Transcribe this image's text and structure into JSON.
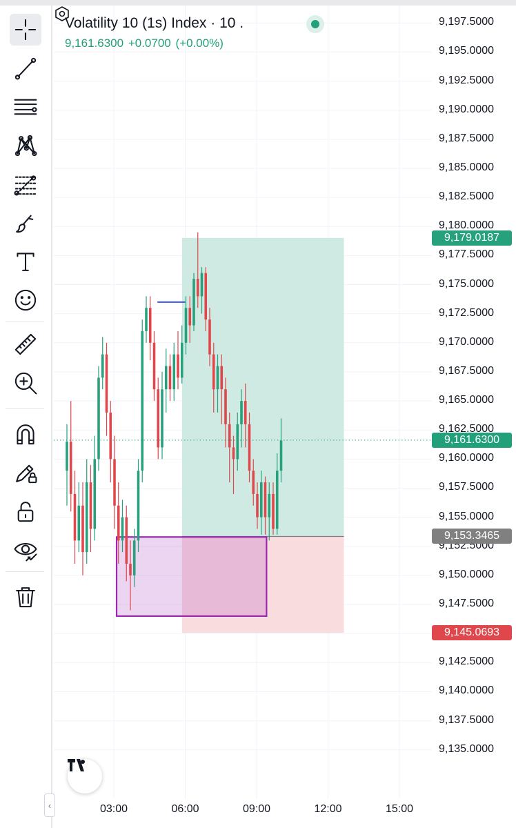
{
  "symbol": {
    "title": "Volatility 10 (1s) Index · 10 .",
    "price": "9,161.6300",
    "change": "+0.0700",
    "change_pct": "(+0.00%)"
  },
  "colors": {
    "up": "#26a17b",
    "down": "#e0474c",
    "profit_zone": "#cfeae2",
    "loss_zone": "#f9dcde",
    "current_price": "#22a07a",
    "entry": "#808080",
    "stop": "#e0474c",
    "box_border": "#9c27b0",
    "line": "#3d5ad4"
  },
  "toolbar": {
    "tools": [
      {
        "name": "crosshair-icon",
        "active": true
      },
      {
        "name": "trend-line-icon"
      },
      {
        "name": "horizontal-lines-icon"
      },
      {
        "name": "pattern-icon"
      },
      {
        "name": "fib-icon"
      },
      {
        "name": "brush-icon"
      },
      {
        "name": "text-icon"
      },
      {
        "name": "emoji-icon"
      },
      {
        "name": "ruler-icon"
      },
      {
        "name": "zoom-in-icon"
      },
      {
        "name": "magnet-icon"
      },
      {
        "name": "lock-drawing-icon"
      },
      {
        "name": "unlock-icon"
      },
      {
        "name": "eye-icon"
      },
      {
        "name": "trash-icon"
      }
    ],
    "collapse_glyph": "‹"
  },
  "price_axis": {
    "ticks": [
      "9,197.5000",
      "9,195.0000",
      "9,192.5000",
      "9,190.0000",
      "9,187.5000",
      "9,185.0000",
      "9,182.5000",
      "9,180.0000",
      "9,177.5000",
      "9,175.0000",
      "9,172.5000",
      "9,170.0000",
      "9,167.5000",
      "9,165.0000",
      "9,162.5000",
      "9,160.0000",
      "9,157.5000",
      "9,155.0000",
      "9,152.5000",
      "9,150.0000",
      "9,147.5000",
      "9,145.0000",
      "9,142.5000",
      "9,140.0000",
      "9,137.5000",
      "9,135.0000"
    ],
    "labels": {
      "target": "9,179.0187",
      "current": "9,161.6300",
      "entry": "9,153.3465",
      "stop": "9,145.0693"
    }
  },
  "time_axis": {
    "ticks": [
      "03:00",
      "06:00",
      "09:00",
      "12:00",
      "15:00"
    ]
  },
  "chart_data": {
    "type": "candlestick",
    "ylim": [
      9133.5,
      9199
    ],
    "grid": true,
    "x": {
      "first_candle_time": "01:00",
      "candle_interval_minutes": 10
    },
    "candles": [
      [
        9159,
        9161.5,
        9156,
        9163
      ],
      [
        9161.5,
        9157,
        9155.5,
        9165
      ],
      [
        9157,
        9153,
        9151,
        9159
      ],
      [
        9153,
        9156,
        9152,
        9158
      ],
      [
        9156,
        9152,
        9150,
        9158
      ],
      [
        9152,
        9158,
        9151,
        9160
      ],
      [
        9158,
        9154,
        9152,
        9159.5
      ],
      [
        9154,
        9160,
        9153,
        9162
      ],
      [
        9160,
        9167,
        9159,
        9168
      ],
      [
        9167,
        9169,
        9166,
        9170.5
      ],
      [
        9169,
        9164,
        9162,
        9170
      ],
      [
        9164,
        9160,
        9158,
        9165
      ],
      [
        9160,
        9156,
        9154,
        9162
      ],
      [
        9156,
        9153,
        9151,
        9158
      ],
      [
        9153,
        9155,
        9152,
        9156.5
      ],
      [
        9155,
        9151,
        9149.5,
        9156
      ],
      [
        9151,
        9150,
        9147,
        9153
      ],
      [
        9150,
        9153,
        9149,
        9154
      ],
      [
        9153,
        9159,
        9152,
        9160
      ],
      [
        9159,
        9171,
        9158,
        9172
      ],
      [
        9171,
        9173,
        9170,
        9174
      ],
      [
        9173,
        9170,
        9168.5,
        9174
      ],
      [
        9170,
        9166,
        9165,
        9171
      ],
      [
        9166,
        9161,
        9160,
        9167
      ],
      [
        9161,
        9166,
        9160,
        9167.5
      ],
      [
        9166,
        9168,
        9164,
        9169.5
      ],
      [
        9168,
        9166,
        9165,
        9169
      ],
      [
        9166,
        9169,
        9165,
        9170
      ],
      [
        9169,
        9167,
        9166,
        9171
      ],
      [
        9167,
        9170,
        9166.5,
        9171.5
      ],
      [
        9170,
        9173,
        9169,
        9174
      ],
      [
        9173,
        9171.5,
        9170,
        9174
      ],
      [
        9171.5,
        9175.5,
        9171,
        9176
      ],
      [
        9175.5,
        9174,
        9173,
        9179.5
      ],
      [
        9174,
        9176,
        9172.5,
        9176.5
      ],
      [
        9176,
        9172,
        9171,
        9176.5
      ],
      [
        9172,
        9169,
        9168,
        9173
      ],
      [
        9169,
        9166,
        9164,
        9170
      ],
      [
        9166,
        9168,
        9164,
        9169
      ],
      [
        9168,
        9166,
        9163,
        9169
      ],
      [
        9166,
        9163,
        9161,
        9167
      ],
      [
        9163,
        9161,
        9158,
        9164
      ],
      [
        9161,
        9160,
        9157,
        9162
      ],
      [
        9160,
        9163,
        9159,
        9164
      ],
      [
        9163,
        9165,
        9161,
        9166
      ],
      [
        9165,
        9163,
        9161,
        9166.5
      ],
      [
        9163,
        9159,
        9158,
        9164
      ],
      [
        9159,
        9157,
        9156,
        9160
      ],
      [
        9157,
        9155,
        9154,
        9158
      ],
      [
        9155,
        9158,
        9153.5,
        9159
      ],
      [
        9158,
        9155,
        9153.5,
        9158.5
      ],
      [
        9155,
        9157,
        9153,
        9158
      ],
      [
        9157,
        9154,
        9153.5,
        9158
      ],
      [
        9154,
        9159,
        9153.5,
        9160.5
      ],
      [
        9159,
        9161.6,
        9158,
        9163.5
      ]
    ],
    "drawings": {
      "long_position": {
        "entry": 9153.3465,
        "target": 9179.0187,
        "stop": 9145.0693,
        "start": "05:52",
        "end": "12:40"
      },
      "horizontal_line": {
        "price": 9173.5,
        "start": "04:50",
        "end": "06:00"
      },
      "rectangle": {
        "top": 9153.3,
        "bottom": 9146.5,
        "start": "03:07",
        "end": "09:25"
      }
    }
  }
}
